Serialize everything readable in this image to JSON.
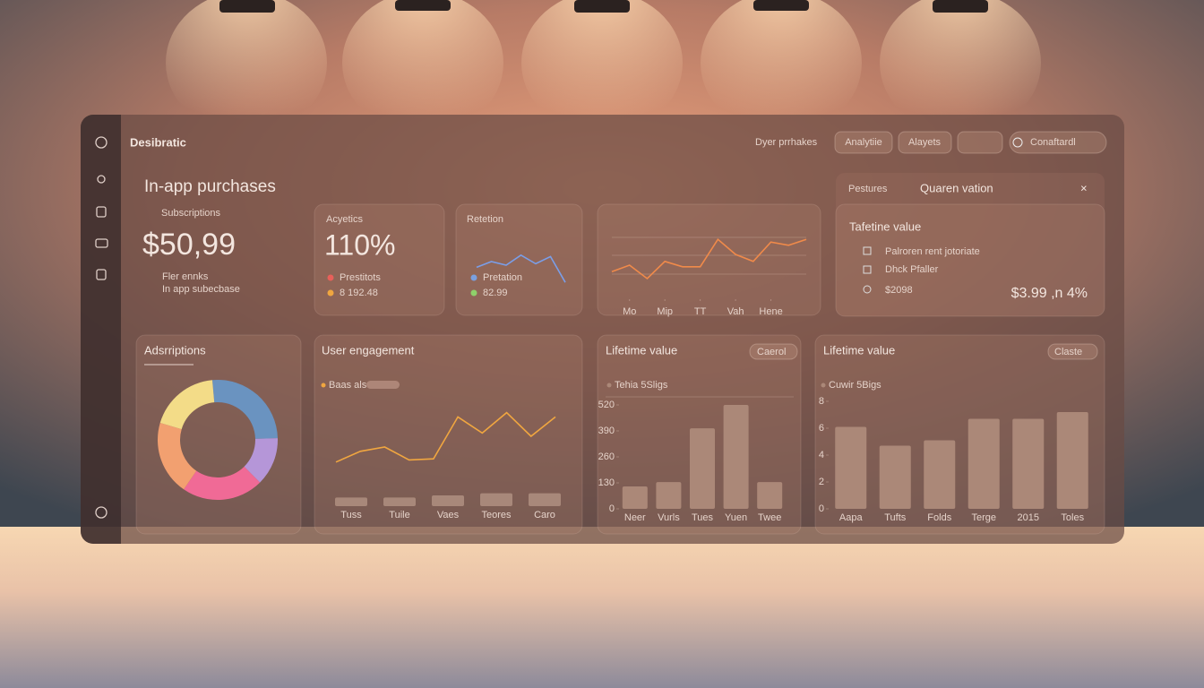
{
  "header": {
    "brand": "Desibratic",
    "menu": "Dyer prrhakes",
    "tabs": [
      "Analytiie",
      "Alayets"
    ],
    "action": "Conaftardl"
  },
  "hero": {
    "title": "In-app purchases",
    "label": "Subscriptions",
    "amount": "$50,99",
    "note": "Fler ennks",
    "caption": "In app subecbase"
  },
  "analytics": {
    "title": "Acyetics",
    "value": "110%",
    "legend": [
      {
        "label": "Prestitots",
        "color": "#e8605a"
      },
      {
        "label": "8 192.48",
        "color": "#f0a640"
      }
    ]
  },
  "retention": {
    "title": "Retetion",
    "legend": [
      {
        "label": "Pretation",
        "color": "#7aa0e0"
      },
      {
        "label": "82.99",
        "color": "#8fd06a"
      }
    ],
    "chart": {
      "type": "line",
      "color": "#7a9ee8",
      "values": [
        27,
        35,
        30,
        44,
        32,
        42,
        6
      ],
      "ylim": [
        0,
        50
      ]
    }
  },
  "trend": {
    "chart": {
      "type": "line",
      "color": "#f08a4a",
      "x": [
        0,
        1,
        2,
        3,
        4,
        5,
        6,
        7,
        8,
        9,
        10,
        11
      ],
      "values": [
        28,
        40,
        15,
        47,
        37,
        37,
        88,
        60,
        47,
        83,
        77,
        88
      ],
      "xlim": [
        0,
        11
      ],
      "ylim": [
        0,
        100
      ],
      "xticks": [
        {
          "value": 1,
          "label": "Mo"
        },
        {
          "value": 3,
          "label": "Mip"
        },
        {
          "value": 5,
          "label": "TT"
        },
        {
          "value": 7,
          "label": "Vah"
        },
        {
          "value": 9,
          "label": "Hene"
        }
      ]
    }
  },
  "detail": {
    "crumbs": [
      "Pestures",
      "Quaren vation"
    ],
    "title": "Tafetine value",
    "rows": [
      "Palroren rent jotoriate",
      "Dhck Pfaller",
      "$2098"
    ],
    "total": "$3.99 ,n 4%"
  },
  "subscriptions": {
    "title": "Adsrriptions",
    "chart": {
      "type": "pie",
      "values": [
        26,
        13,
        22,
        20,
        19
      ],
      "colors": [
        "#6a93c0",
        "#b596d8",
        "#f06a96",
        "#f2a070",
        "#f3dc88"
      ]
    }
  },
  "engagement": {
    "title": "User engagement",
    "line": {
      "type": "line",
      "series": [
        {
          "name": "Baas als",
          "color": "#f0a640",
          "values": [
            41,
            51,
            55,
            43,
            44,
            83,
            68,
            87,
            65,
            83
          ]
        }
      ],
      "ylim": [
        0,
        100
      ]
    },
    "bars": {
      "type": "bar",
      "categories": [
        "Tuss",
        "Tuile",
        "Vaes",
        "Teores",
        "Caro"
      ],
      "values": [
        8,
        8,
        10,
        12,
        12
      ],
      "color": "#a8887a",
      "ylim": [
        0,
        100
      ]
    }
  },
  "lifetime": {
    "title": "Lifetime value",
    "dropdown": "Caerol",
    "chart": {
      "type": "bar",
      "categories": [
        "Neer",
        "Vurls",
        "Tues",
        "Yuen",
        "Twee"
      ],
      "series": [
        {
          "name": "Tehia 5Sligs",
          "color": "#ab8878",
          "values": [
            112,
            134,
            403,
            520,
            134
          ]
        }
      ],
      "ylim": [
        0,
        520
      ],
      "yticks": [
        0,
        130,
        260,
        390,
        520
      ]
    }
  },
  "lifetime2": {
    "title": "Lifetime value",
    "dropdown": "Claste",
    "chart": {
      "type": "bar",
      "categories": [
        "Aapa",
        "Tufts",
        "Folds",
        "Terge",
        "2015",
        "Toles"
      ],
      "series": [
        {
          "name": "Cuwir 5Bigs",
          "color": "#ab8878",
          "values": [
            6.1,
            4.7,
            5.1,
            6.7,
            6.7,
            7.2
          ]
        }
      ],
      "ylim": [
        0,
        8
      ],
      "yticks": [
        0,
        2,
        4,
        6,
        8
      ]
    }
  }
}
